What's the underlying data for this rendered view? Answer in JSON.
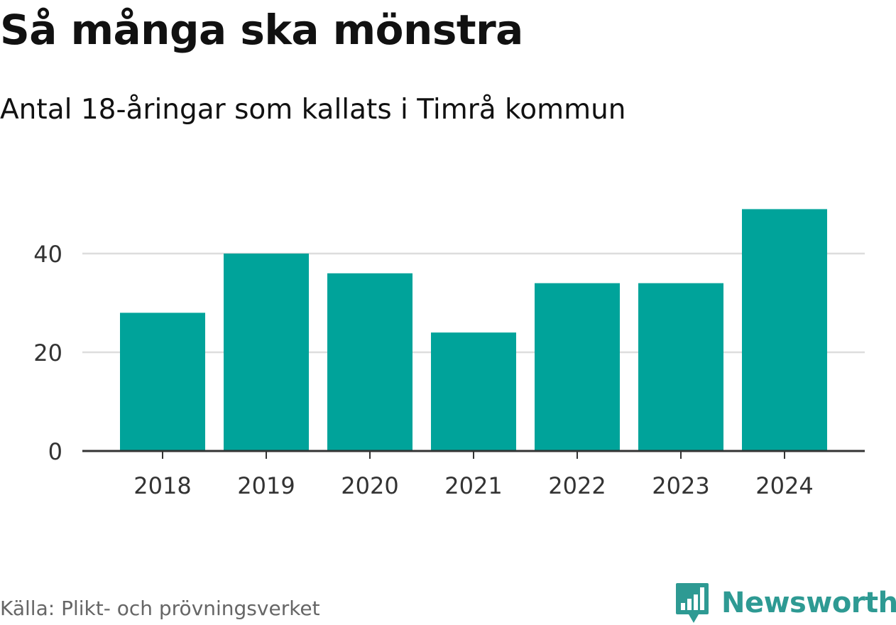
{
  "header": {
    "title": "Så många ska mönstra",
    "subtitle": "Antal 18-åringar som kallats i Timrå kommun"
  },
  "footer": {
    "source": "Källa: Plikt- och prövningsverket",
    "brand": "Newsworthy",
    "brand_icon": "newsworthy-logo-icon"
  },
  "colors": {
    "bar": "#00A39A",
    "brand": "#2E9A93",
    "grid": "#DDDDDD",
    "axis": "#333333",
    "text": "#333333"
  },
  "chart_data": {
    "type": "bar",
    "title": "Så många ska mönstra",
    "subtitle": "Antal 18-åringar som kallats i Timrå kommun",
    "categories": [
      "2018",
      "2019",
      "2020",
      "2021",
      "2022",
      "2023",
      "2024"
    ],
    "values": [
      28,
      40,
      36,
      24,
      34,
      34,
      49
    ],
    "y_ticks": [
      "0",
      "20",
      "40"
    ],
    "ylim": [
      0,
      50
    ],
    "grid": true,
    "legend": "none"
  }
}
